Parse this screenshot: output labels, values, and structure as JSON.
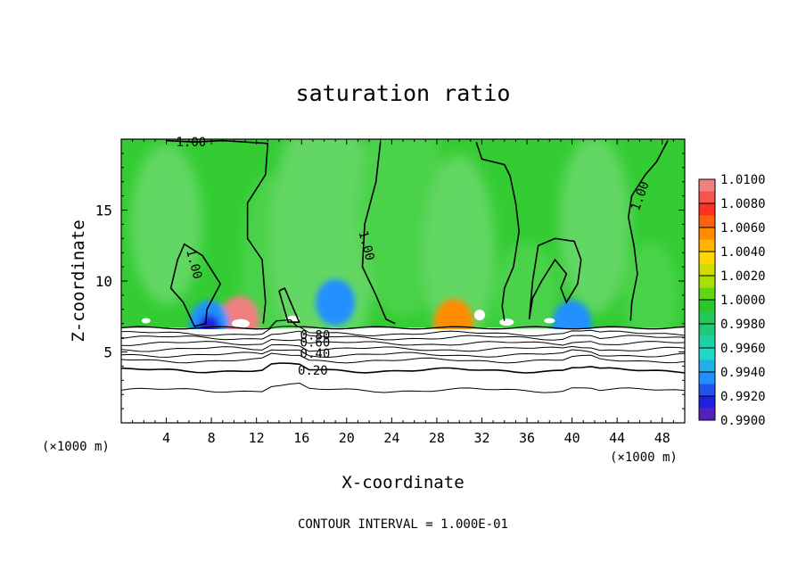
{
  "chart_data": {
    "type": "heatmap",
    "title": "saturation ratio",
    "xlabel": "X-coordinate",
    "ylabel": "Z-coordinate",
    "x_unit": "(×1000 m)",
    "x_unit_right": "(×1000 m)",
    "xlim": [
      0,
      50
    ],
    "ylim": [
      0,
      20
    ],
    "x_ticks": [
      4,
      8,
      12,
      16,
      20,
      24,
      28,
      32,
      36,
      40,
      44,
      48
    ],
    "y_ticks": [
      5,
      10,
      15
    ],
    "footer": "CONTOUR INTERVAL = 1.000E-01",
    "colorbar": {
      "labels": [
        "1.0100",
        "1.0080",
        "1.0060",
        "1.0040",
        "1.0020",
        "1.0000",
        "0.9980",
        "0.9960",
        "0.9940",
        "0.9920",
        "0.9900"
      ],
      "colors": [
        "#f08080",
        "#ff3020",
        "#ff8c00",
        "#ffd700",
        "#a8e000",
        "#28c828",
        "#20c878",
        "#20d8c8",
        "#2090ff",
        "#2020e0",
        "#8020a0"
      ]
    },
    "field": {
      "background_color": "#33cc33",
      "cloud_base_z_km": 6.7,
      "lower_region": "white (subsaturated, below colorbar range)"
    },
    "contour_labels": [
      {
        "text": "1.00",
        "x": 6.2,
        "z": 19.8
      },
      {
        "text": "1.00",
        "x": 6.5,
        "z": 11.2
      },
      {
        "text": "1.00",
        "x": 21.8,
        "z": 12.5
      },
      {
        "text": "1.00",
        "x": 46.0,
        "z": 16.0
      },
      {
        "text": "0.80",
        "x": 17.2,
        "z": 6.2
      },
      {
        "text": "0.60",
        "x": 17.2,
        "z": 5.7
      },
      {
        "text": "0.40",
        "x": 17.2,
        "z": 4.9
      },
      {
        "text": "0.20",
        "x": 17.0,
        "z": 3.7
      }
    ],
    "stratified_contours_z": [
      2.3,
      3.7,
      4.4,
      4.8,
      5.2,
      5.6,
      6.0,
      6.3
    ],
    "hotspots": [
      {
        "x": 10.5,
        "z": 7.3,
        "value": 1.01
      },
      {
        "x": 29.5,
        "z": 7.1,
        "value": 1.006
      },
      {
        "x": 19.0,
        "z": 8.5,
        "value": 0.995
      },
      {
        "x": 7.8,
        "z": 7.0,
        "value": 0.994
      },
      {
        "x": 40.0,
        "z": 7.0,
        "value": 0.995
      }
    ]
  }
}
